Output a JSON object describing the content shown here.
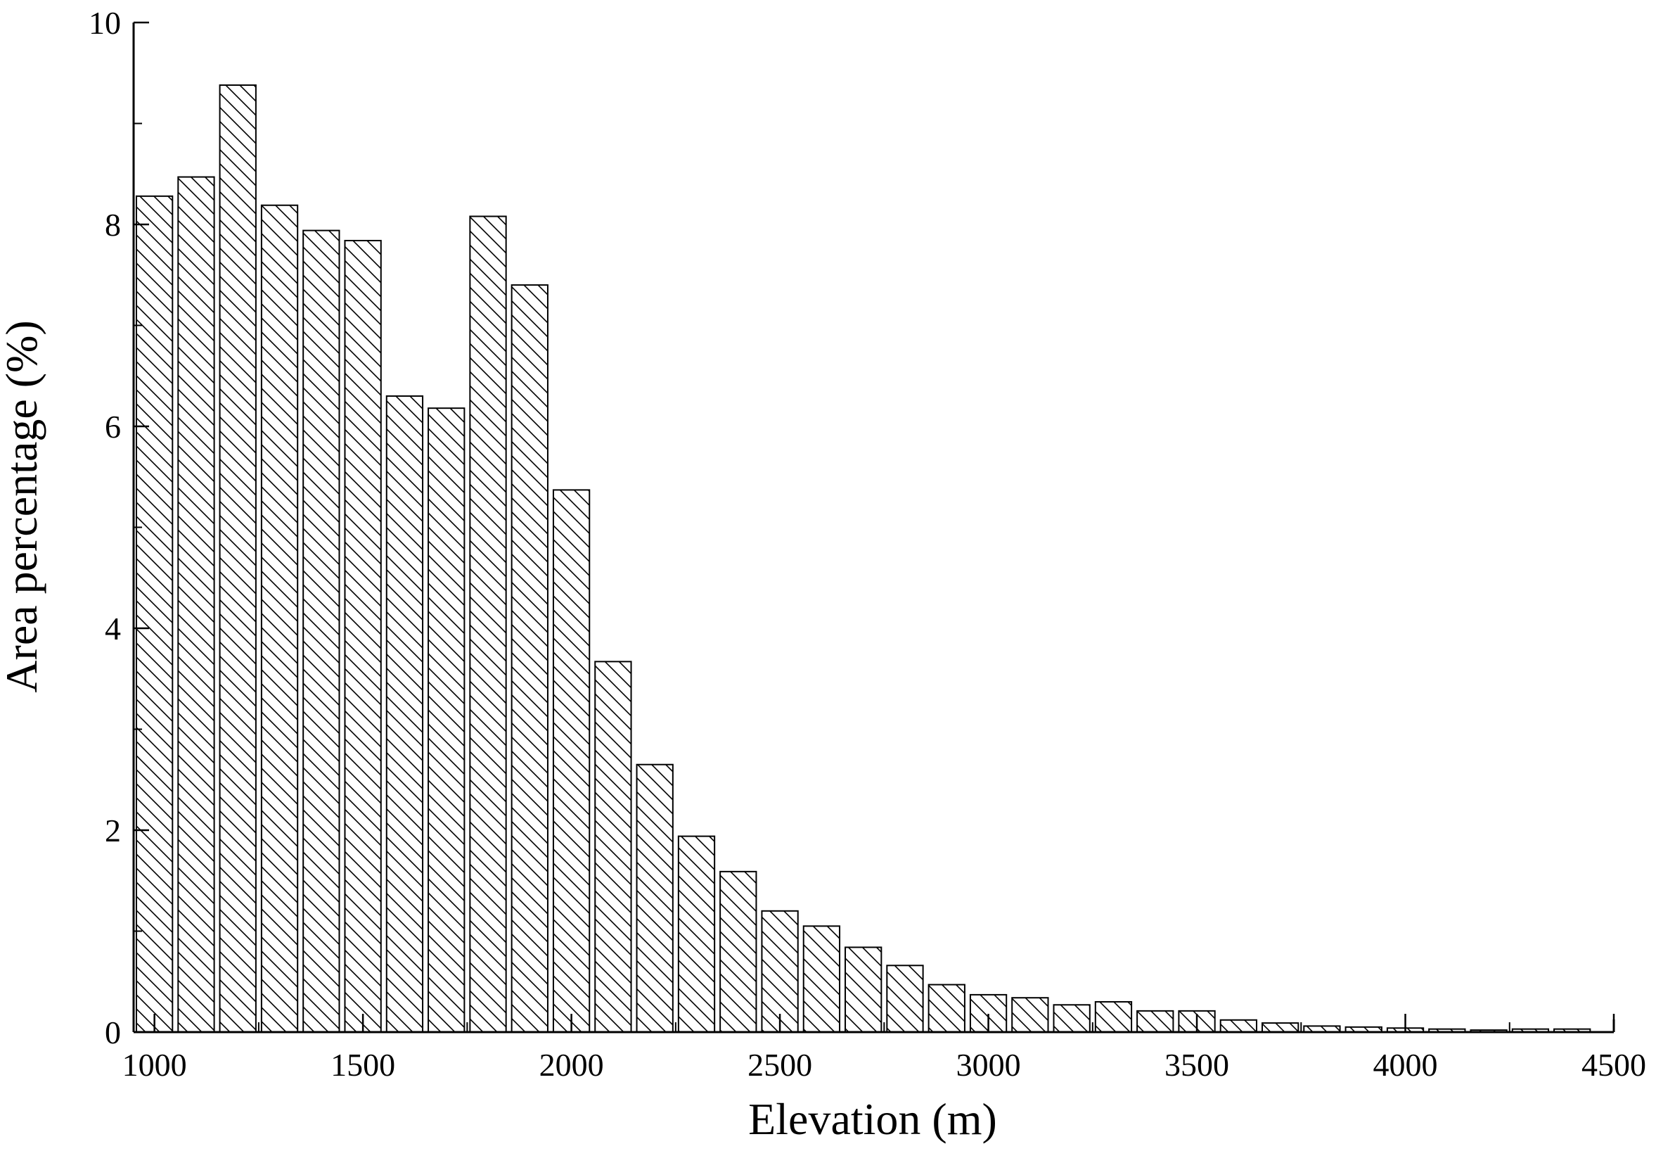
{
  "chart_data": {
    "type": "bar",
    "xlabel": "Elevation (m)",
    "ylabel": "Area percentage (%)",
    "xlim": [
      950,
      4500
    ],
    "ylim": [
      0,
      10
    ],
    "bin_width": 100,
    "x": [
      1000,
      1100,
      1200,
      1300,
      1400,
      1500,
      1600,
      1700,
      1800,
      1900,
      2000,
      2100,
      2200,
      2300,
      2400,
      2500,
      2600,
      2700,
      2800,
      2900,
      3000,
      3100,
      3200,
      3300,
      3400,
      3500,
      3600,
      3700,
      3800,
      3900,
      4000,
      4100,
      4200,
      4300,
      4400
    ],
    "values": [
      8.28,
      8.47,
      9.38,
      8.19,
      7.94,
      7.84,
      6.3,
      6.18,
      8.08,
      7.4,
      5.37,
      3.67,
      2.65,
      1.94,
      1.59,
      1.2,
      1.05,
      0.84,
      0.66,
      0.47,
      0.37,
      0.34,
      0.27,
      0.3,
      0.21,
      0.21,
      0.12,
      0.09,
      0.06,
      0.05,
      0.04,
      0.03,
      0.02,
      0.03,
      0.03
    ],
    "x_ticks": [
      1000,
      1500,
      2000,
      2500,
      3000,
      3500,
      4000,
      4500
    ],
    "x_tick_labels": [
      "1000",
      "1500",
      "2000",
      "2500",
      "3000",
      "3500",
      "4000",
      "4500"
    ],
    "y_ticks": [
      0,
      2,
      4,
      6,
      8,
      10
    ],
    "y_tick_labels": [
      "0",
      "2",
      "4",
      "6",
      "8",
      "10"
    ],
    "bar_fill": "hatched",
    "bar_color": "#000000",
    "grid": false,
    "legend": "none"
  }
}
